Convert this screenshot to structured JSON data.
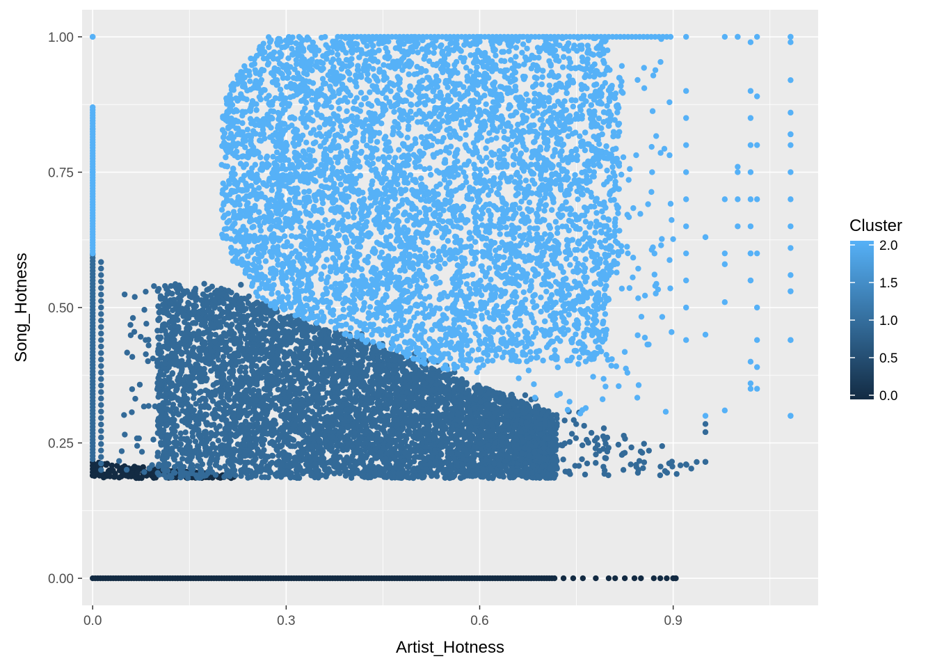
{
  "chart_data": {
    "type": "scatter",
    "title": "",
    "xlabel": "Artist_Hotness",
    "ylabel": "Song_Hotness",
    "xlim": [
      -0.0164,
      1.1247
    ],
    "ylim": [
      -0.05,
      1.05
    ],
    "x_ticks": [
      0.0,
      0.3,
      0.6,
      0.9
    ],
    "x_tick_labels": [
      "0.0",
      "0.3",
      "0.6",
      "0.9"
    ],
    "y_ticks": [
      0.0,
      0.25,
      0.5,
      0.75,
      1.0
    ],
    "y_tick_labels": [
      "0.00",
      "0.25",
      "0.50",
      "0.75",
      "1.00"
    ],
    "grid": true,
    "background_color": "#EBEBEB",
    "legend": {
      "title": "Cluster",
      "type": "colorbar",
      "position": "right",
      "min": 0,
      "max": 2,
      "breaks": [
        0.0,
        0.5,
        1.0,
        1.5,
        2.0
      ],
      "break_labels": [
        "0.0",
        "0.5",
        "1.0",
        "1.5",
        "2.0"
      ],
      "low_color": "#132B43",
      "high_color": "#56B1F7"
    },
    "clusters": [
      {
        "cluster": 0,
        "color": "#132B43",
        "description": "Song_Hotness = 0 and low Song_Hotness band",
        "points_x_range": [
          0.0,
          0.904
        ],
        "points_y_range": [
          0.0,
          0.22
        ]
      },
      {
        "cluster": 1,
        "color": "#336A98",
        "description": "mid Song_Hotness",
        "points_x_range": [
          0.0,
          0.95
        ],
        "points_y_range": [
          0.19,
          0.6
        ]
      },
      {
        "cluster": 2,
        "color": "#56B1F7",
        "description": "high Song_Hotness",
        "points_x_range": [
          0.0,
          1.082
        ],
        "points_y_range": [
          0.3,
          1.0
        ]
      }
    ],
    "sample_points": {
      "x": [
        0.0,
        0.0,
        0.0,
        0.0,
        0.0,
        0.0,
        0.0,
        0.9,
        0.904,
        0.95,
        1.0,
        1.02,
        1.02,
        1.082,
        1.082,
        1.082,
        1.082,
        1.082,
        0.32,
        0.95,
        1.02
      ],
      "y": [
        1.0,
        0.87,
        0.83,
        0.75,
        0.6,
        0.25,
        0.19,
        0.0,
        0.0,
        0.215,
        1.0,
        0.6,
        0.35,
        1.0,
        0.82,
        0.53,
        0.44,
        0.3,
        1.0,
        0.63,
        0.55
      ],
      "cluster": [
        2,
        2,
        2,
        2,
        2,
        1,
        0,
        0,
        0,
        1,
        2,
        2,
        2,
        2,
        2,
        2,
        2,
        2,
        2,
        2,
        2
      ]
    }
  }
}
